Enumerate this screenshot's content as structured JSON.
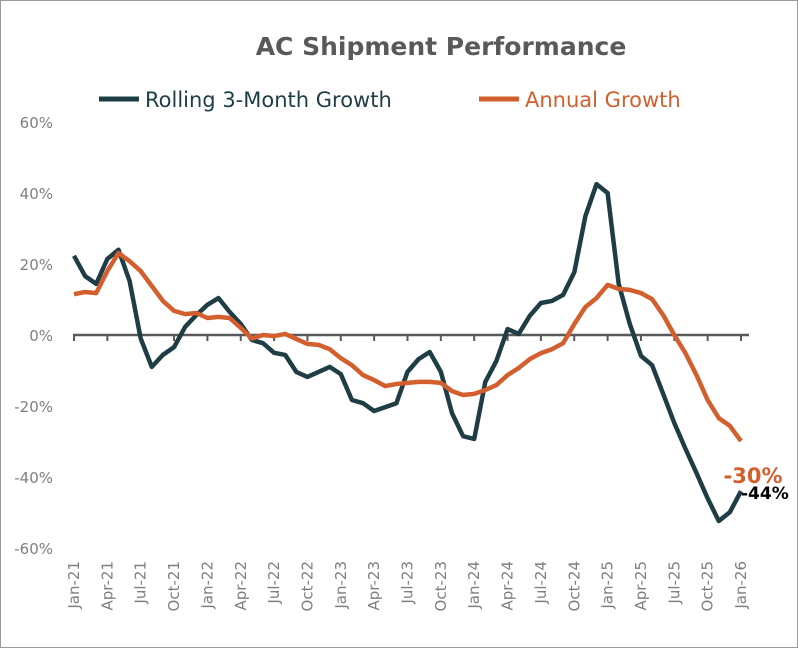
{
  "chart_data": {
    "type": "line",
    "title": "AC Shipment Performance",
    "xlabel": "",
    "ylabel": "",
    "ylim": [
      -60,
      60
    ],
    "y_ticks": [
      "60%",
      "40%",
      "20%",
      "0%",
      "-20%",
      "-40%",
      "-60%"
    ],
    "x_tick_labels": [
      "Jan-21",
      "Apr-21",
      "Jul-21",
      "Oct-21",
      "Jan-22",
      "Apr-22",
      "Jul-22",
      "Oct-22",
      "Jan-23",
      "Apr-23",
      "Jul-23",
      "Oct-23",
      "Jan-24",
      "Apr-24",
      "Jul-24",
      "Oct-24",
      "Jan-25",
      "Apr-25",
      "Jul-25",
      "Oct-25",
      "Jan-26"
    ],
    "x_range": [
      "Jan-21",
      "Jan-26"
    ],
    "grid": false,
    "legend": "top",
    "series": [
      {
        "name": "Rolling 3-Month Growth",
        "color": "#1f3d45",
        "end_label": "-44%",
        "end_label_color": "#000000",
        "values": [
          22.3,
          16.6,
          14.4,
          21.4,
          24,
          15.2,
          -1,
          -9,
          -5.6,
          -3.4,
          2.3,
          5.6,
          8.5,
          10.4,
          6.5,
          3.1,
          -1.4,
          -2.3,
          -5,
          -5.6,
          -10.4,
          -11.8,
          -10.4,
          -9,
          -11,
          -18.3,
          -19.2,
          -21.4,
          -20.3,
          -19.2,
          -10.4,
          -6.8,
          -4.8,
          -10.4,
          -22,
          -28.5,
          -29.3,
          -13.2,
          -7.3,
          1.7,
          0.3,
          5.4,
          9,
          9.6,
          11.3,
          17.7,
          33.5,
          42.5,
          40,
          14.4,
          3.1,
          -5.9,
          -8.5,
          -16.6,
          -24.8,
          -32,
          -38.9,
          -46,
          -52.4,
          -49.9,
          -44
        ]
      },
      {
        "name": "Annual Growth",
        "color": "#d35f2e",
        "end_label": "-30%",
        "end_label_color": "#d35f2e",
        "values": [
          11.5,
          12.1,
          11.8,
          18,
          23.1,
          20.8,
          18,
          13.8,
          9.6,
          6.8,
          5.9,
          6.2,
          4.8,
          5.1,
          4.8,
          2,
          -1,
          0,
          -0.3,
          0.3,
          -1.1,
          -2.5,
          -2.8,
          -4,
          -6.5,
          -8.5,
          -11.3,
          -12.7,
          -14.4,
          -13.8,
          -13.5,
          -13.2,
          -13.2,
          -13.5,
          -15.8,
          -16.9,
          -16.6,
          -15.5,
          -14.1,
          -11.3,
          -9.3,
          -6.8,
          -5.1,
          -4,
          -2.3,
          3.1,
          7.9,
          10.4,
          14.1,
          13,
          12.7,
          11.8,
          10.1,
          5.6,
          0,
          -5.1,
          -11.3,
          -18.3,
          -23.4,
          -25.6,
          -29.9
        ]
      }
    ]
  }
}
